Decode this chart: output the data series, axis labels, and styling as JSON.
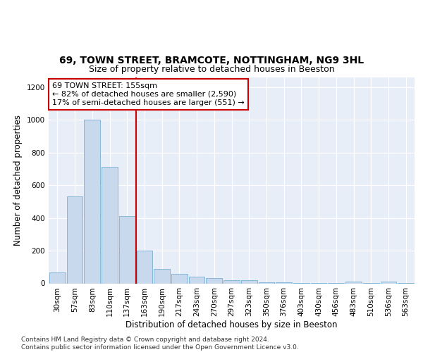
{
  "title1": "69, TOWN STREET, BRAMCOTE, NOTTINGHAM, NG9 3HL",
  "title2": "Size of property relative to detached houses in Beeston",
  "xlabel": "Distribution of detached houses by size in Beeston",
  "ylabel": "Number of detached properties",
  "categories": [
    "30sqm",
    "57sqm",
    "83sqm",
    "110sqm",
    "137sqm",
    "163sqm",
    "190sqm",
    "217sqm",
    "243sqm",
    "270sqm",
    "297sqm",
    "323sqm",
    "350sqm",
    "376sqm",
    "403sqm",
    "430sqm",
    "456sqm",
    "483sqm",
    "510sqm",
    "536sqm",
    "563sqm"
  ],
  "values": [
    65,
    530,
    1000,
    715,
    410,
    200,
    90,
    60,
    40,
    32,
    18,
    18,
    5,
    5,
    3,
    3,
    3,
    12,
    3,
    12,
    3
  ],
  "bar_color": "#c8d9ee",
  "bar_edge_color": "#7aafd4",
  "vline_x_idx": 4.5,
  "vline_color": "#cc0000",
  "annotation_text": "69 TOWN STREET: 155sqm\n← 82% of detached houses are smaller (2,590)\n17% of semi-detached houses are larger (551) →",
  "box_facecolor": "#ffffff",
  "box_edgecolor": "#cc0000",
  "footer": "Contains HM Land Registry data © Crown copyright and database right 2024.\nContains public sector information licensed under the Open Government Licence v3.0.",
  "ylim": [
    0,
    1260
  ],
  "yticks": [
    0,
    200,
    400,
    600,
    800,
    1000,
    1200
  ],
  "bg_color": "#e8eef8",
  "grid_color": "#ffffff",
  "title1_fontsize": 10,
  "title2_fontsize": 9,
  "xlabel_fontsize": 8.5,
  "ylabel_fontsize": 8.5,
  "tick_fontsize": 7.5,
  "annotation_fontsize": 8,
  "footer_fontsize": 6.5
}
